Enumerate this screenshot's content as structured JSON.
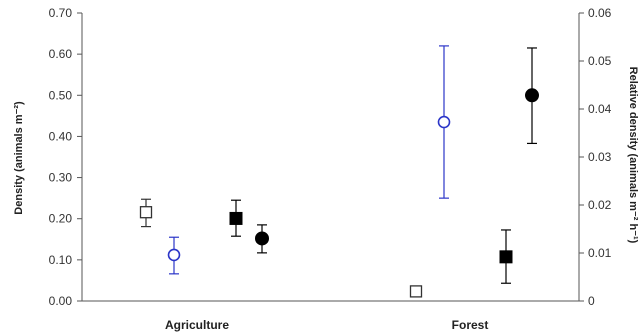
{
  "chart_data": {
    "type": "scatter",
    "categories": [
      "Agriculture",
      "Forest"
    ],
    "ylabel": "Density (animals m⁻²)",
    "y2label": "Relative density (animals m⁻² h⁻¹)",
    "ylim": [
      0,
      0.7
    ],
    "y2lim": [
      0,
      0.06
    ],
    "yticks": [
      "0.00",
      "0.10",
      "0.20",
      "0.30",
      "0.40",
      "0.50",
      "0.60",
      "0.70"
    ],
    "y2ticks": [
      "0",
      "0.01",
      "0.02",
      "0.03",
      "0.04",
      "0.05",
      "0.06"
    ],
    "series": [
      {
        "marker": "open-square",
        "axis": "y2",
        "color": "#333333",
        "points": [
          {
            "category": "Agriculture",
            "y": 0.0185,
            "err_low": 0.0155,
            "err_high": 0.0212
          },
          {
            "category": "Forest",
            "y": 0.002,
            "err_low": 0.0009,
            "err_high": 0.0031
          }
        ]
      },
      {
        "marker": "open-circle",
        "axis": "y",
        "color": "#2b35c8",
        "points": [
          {
            "category": "Agriculture",
            "y": 0.112,
            "err_low": 0.066,
            "err_high": 0.155
          },
          {
            "category": "Forest",
            "y": 0.435,
            "err_low": 0.25,
            "err_high": 0.62
          }
        ]
      },
      {
        "marker": "filled-square",
        "axis": "y2",
        "color": "#000000",
        "points": [
          {
            "category": "Agriculture",
            "y": 0.0172,
            "err_low": 0.0135,
            "err_high": 0.021
          },
          {
            "category": "Forest",
            "y": 0.0092,
            "err_low": 0.0037,
            "err_high": 0.0148
          }
        ]
      },
      {
        "marker": "filled-circle",
        "axis": "y",
        "color": "#000000",
        "points": [
          {
            "category": "Agriculture",
            "y": 0.152,
            "err_low": 0.117,
            "err_high": 0.185
          },
          {
            "category": "Forest",
            "y": 0.5,
            "err_low": 0.383,
            "err_high": 0.615
          }
        ]
      }
    ]
  }
}
